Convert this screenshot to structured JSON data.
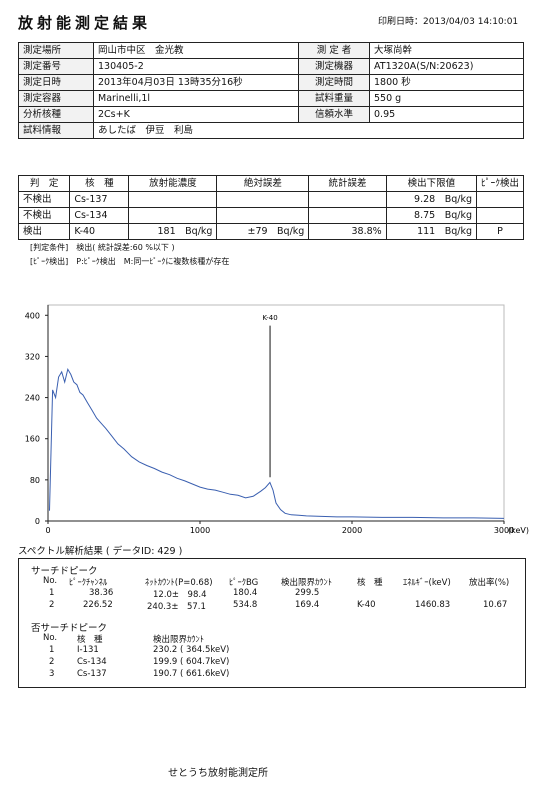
{
  "header": {
    "title": "放射能測定結果",
    "print_date": "印刷日時：2013/04/03 14:10:01"
  },
  "info": {
    "rows": [
      {
        "l1": "測定場所",
        "v1": "岡山市中区　金光教",
        "l2": "測 定 者",
        "v2": "大塚尚幹"
      },
      {
        "l1": "測定番号",
        "v1": "130405-2",
        "l2": "測定機器",
        "v2": "AT1320A(S/N:20623)"
      },
      {
        "l1": "測定日時",
        "v1": "2013年04月03日 13時35分16秒",
        "l2": "測定時間",
        "v2": "1800 秒"
      },
      {
        "l1": "測定容器",
        "v1": "Marinelli,1l",
        "l2": "試料重量",
        "v2": "550 g"
      },
      {
        "l1": "分析核種",
        "v1": "2Cs+K",
        "l2": "信頼水準",
        "v2": "0.95"
      }
    ],
    "sample_label": "試料情報",
    "sample_value": "あしたば　伊豆　利島"
  },
  "results": {
    "headers": [
      "判　定",
      "核　種",
      "放射能濃度",
      "絶対誤差",
      "統計誤差",
      "検出下限値",
      "ﾋﾟｰｸ検出"
    ],
    "rows": [
      {
        "judge": "不検出",
        "nuclide": "Cs-137",
        "activity": "",
        "abs_err": "",
        "stat_err": "",
        "limit": "9.28　Bq/kg",
        "peak": ""
      },
      {
        "judge": "不検出",
        "nuclide": "Cs-134",
        "activity": "",
        "abs_err": "",
        "stat_err": "",
        "limit": "8.75　Bq/kg",
        "peak": ""
      },
      {
        "judge": "検出",
        "nuclide": "K-40",
        "activity": "181　Bq/kg",
        "abs_err": "±79　Bq/kg",
        "stat_err": "38.8%",
        "limit": "111　Bq/kg",
        "peak": "P"
      }
    ],
    "note1": "[判定条件]　検出( 統計誤差:60 %以下 )",
    "note2": "[ﾋﾟｰｸ検出]　P:ﾋﾟｰｸ検出　M:同一ﾋﾟｰｸに複数核種が存在"
  },
  "chart_data": {
    "type": "line",
    "title": "",
    "xlabel": "(keV)",
    "ylabel": "",
    "xlim": [
      0,
      3000
    ],
    "ylim": [
      0,
      420
    ],
    "xticks": [
      "0",
      "1000",
      "2000",
      "3000"
    ],
    "yticks": [
      "0",
      "80",
      "160",
      "240",
      "320",
      "400"
    ],
    "marker": {
      "label": "K-40",
      "x": 1460.83
    },
    "line_color": "#3a5fb0",
    "grid": false,
    "series": [
      {
        "x": [
          10,
          30,
          50,
          70,
          90,
          110,
          130,
          150,
          170,
          190,
          210,
          230,
          260,
          290,
          320,
          350,
          380,
          420,
          460,
          500,
          550,
          600,
          650,
          700,
          750,
          800,
          850,
          900,
          950,
          1000,
          1050,
          1100,
          1150,
          1200,
          1250,
          1300,
          1350,
          1400,
          1430,
          1460,
          1480,
          1500,
          1530,
          1560,
          1600,
          1650,
          1700,
          1800,
          1900,
          2000,
          2200,
          2400,
          2600,
          2800,
          3000
        ],
        "y": [
          20,
          255,
          240,
          280,
          290,
          270,
          295,
          285,
          270,
          265,
          250,
          245,
          230,
          215,
          200,
          190,
          180,
          165,
          150,
          140,
          125,
          115,
          108,
          102,
          95,
          90,
          83,
          78,
          72,
          66,
          62,
          60,
          56,
          52,
          50,
          45,
          48,
          58,
          65,
          75,
          60,
          35,
          22,
          15,
          12,
          11,
          10,
          9,
          8,
          8,
          7,
          7,
          6,
          6,
          5
        ]
      }
    ]
  },
  "analysis": {
    "title": "スペクトル解析結果 ( データID: 429 )",
    "search_title": "サーチドピーク",
    "search_headers": [
      "No.",
      "ﾋﾟｰｸﾁｬﾝﾈﾙ",
      "ﾈｯﾄｶｳﾝﾄ(P=0.68)",
      "ﾋﾟｰｸBG",
      "検出限界ｶｳﾝﾄ",
      "核　種",
      "ｴﾈﾙｷﾞｰ(keV)",
      "放出率(%)"
    ],
    "search_rows": [
      {
        "no": "1",
        "ch": "38.36",
        "net": "12.0±　98.4",
        "bg": "180.4",
        "lim": "299.5",
        "nuc": "",
        "energy": "",
        "rate": ""
      },
      {
        "no": "2",
        "ch": "226.52",
        "net": "240.3±　57.1",
        "bg": "534.8",
        "lim": "169.4",
        "nuc": "K-40",
        "energy": "1460.83",
        "rate": "10.67"
      }
    ],
    "nonsearch_title": "否サーチドピーク",
    "nonsearch_headers": [
      "No.",
      "核　種",
      "検出限界ｶｳﾝﾄ"
    ],
    "nonsearch_rows": [
      {
        "no": "1",
        "nuc": "I-131",
        "lim": "230.2 ( 364.5keV)"
      },
      {
        "no": "2",
        "nuc": "Cs-134",
        "lim": "199.9 ( 604.7keV)"
      },
      {
        "no": "3",
        "nuc": "Cs-137",
        "lim": "190.7 ( 661.6keV)"
      }
    ]
  },
  "footer": {
    "org": "せとうち放射能測定所"
  }
}
